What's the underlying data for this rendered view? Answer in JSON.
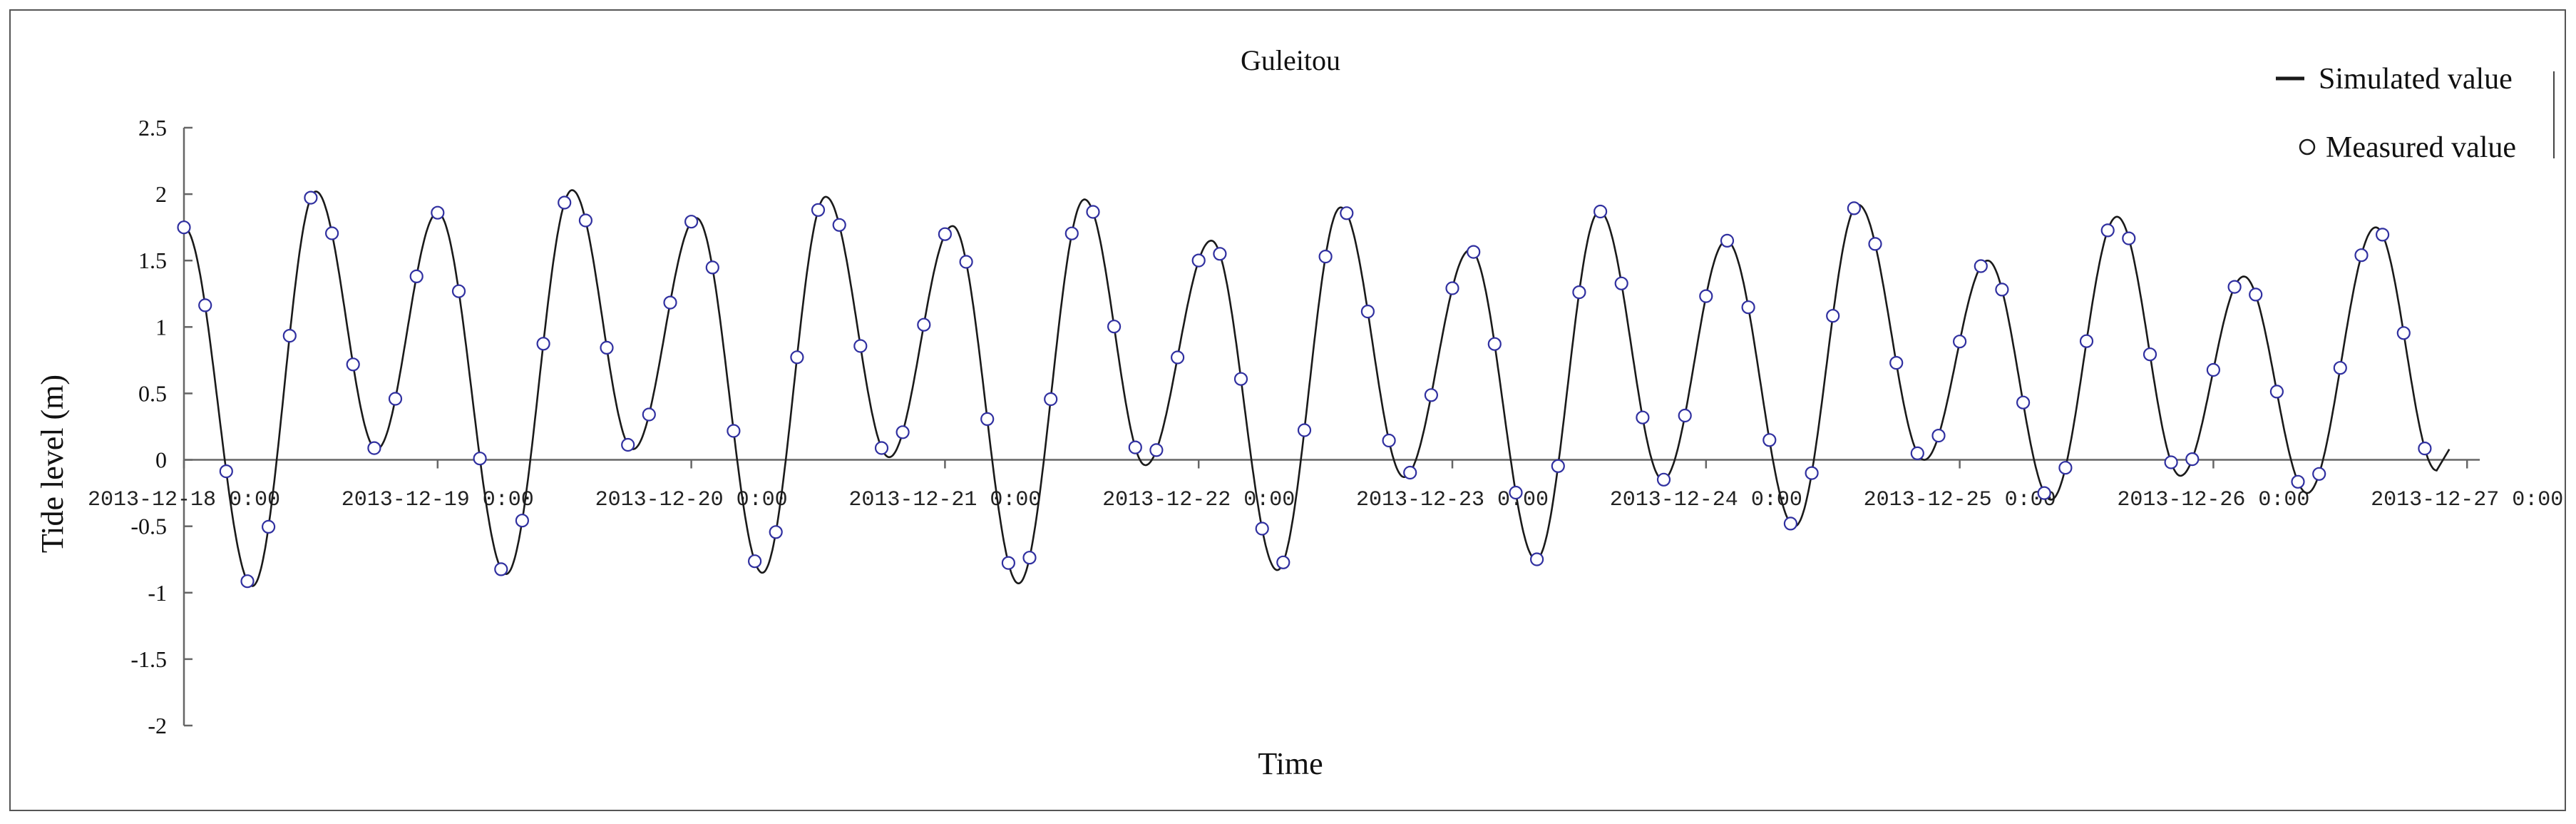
{
  "chart_data": {
    "type": "line",
    "title": "Guleitou",
    "xlabel": "Time",
    "ylabel": "Tide level (m)",
    "ylim": [
      -2,
      2.5
    ],
    "xlim_days": [
      0,
      9.05
    ],
    "y_ticks": [
      "2.5",
      "2",
      "1.5",
      "1",
      "0.5",
      "0",
      "-0.5",
      "-1",
      "-1.5",
      "-2"
    ],
    "x_ticks": [
      {
        "day": 0,
        "label": "2013-12-18  0:00"
      },
      {
        "day": 1,
        "label": "2013-12-19  0:00"
      },
      {
        "day": 2,
        "label": "2013-12-20  0:00"
      },
      {
        "day": 3,
        "label": "2013-12-21  0:00"
      },
      {
        "day": 4,
        "label": "2013-12-22  0:00"
      },
      {
        "day": 5,
        "label": "2013-12-23  0:00"
      },
      {
        "day": 6,
        "label": "2013-12-24  0:00"
      },
      {
        "day": 7,
        "label": "2013-12-25  0:00"
      },
      {
        "day": 8,
        "label": "2013-12-26  0:00"
      },
      {
        "day": 9,
        "label": "2013-12-27  0:00"
      }
    ],
    "legend_position": "top-right",
    "grid": false,
    "colors": {
      "simulated": "#1a1a1a",
      "measured": "#3030a0",
      "axis": "#666666",
      "frame": "#555555"
    },
    "series": [
      {
        "name": "Simulated value",
        "style": "line",
        "extrema": [
          [
            0,
            1.75
          ],
          [
            0.27,
            -0.95
          ],
          [
            0.52,
            2.02
          ],
          [
            0.76,
            0.08
          ],
          [
            1.0,
            1.86
          ],
          [
            1.27,
            -0.86
          ],
          [
            1.53,
            2.03
          ],
          [
            1.77,
            0.08
          ],
          [
            2.02,
            1.82
          ],
          [
            2.28,
            -0.85
          ],
          [
            2.53,
            1.98
          ],
          [
            2.78,
            0.02
          ],
          [
            3.03,
            1.76
          ],
          [
            3.29,
            -0.93
          ],
          [
            3.55,
            1.96
          ],
          [
            3.79,
            -0.04
          ],
          [
            4.05,
            1.65
          ],
          [
            4.31,
            -0.83
          ],
          [
            4.56,
            1.9
          ],
          [
            4.81,
            -0.13
          ],
          [
            5.07,
            1.58
          ],
          [
            5.33,
            -0.75
          ],
          [
            5.58,
            1.87
          ],
          [
            5.83,
            -0.15
          ],
          [
            6.08,
            1.65
          ],
          [
            6.35,
            -0.5
          ],
          [
            6.6,
            1.92
          ],
          [
            6.86,
            0.0
          ],
          [
            7.11,
            1.5
          ],
          [
            7.36,
            -0.3
          ],
          [
            7.62,
            1.83
          ],
          [
            7.87,
            -0.12
          ],
          [
            8.12,
            1.38
          ],
          [
            8.37,
            -0.25
          ],
          [
            8.64,
            1.75
          ],
          [
            8.88,
            -0.08
          ]
        ]
      },
      {
        "name": "Measured value",
        "style": "marker-circle",
        "interval_hours": 2,
        "x_start_day": 0,
        "x_end_day": 8.85
      }
    ]
  }
}
